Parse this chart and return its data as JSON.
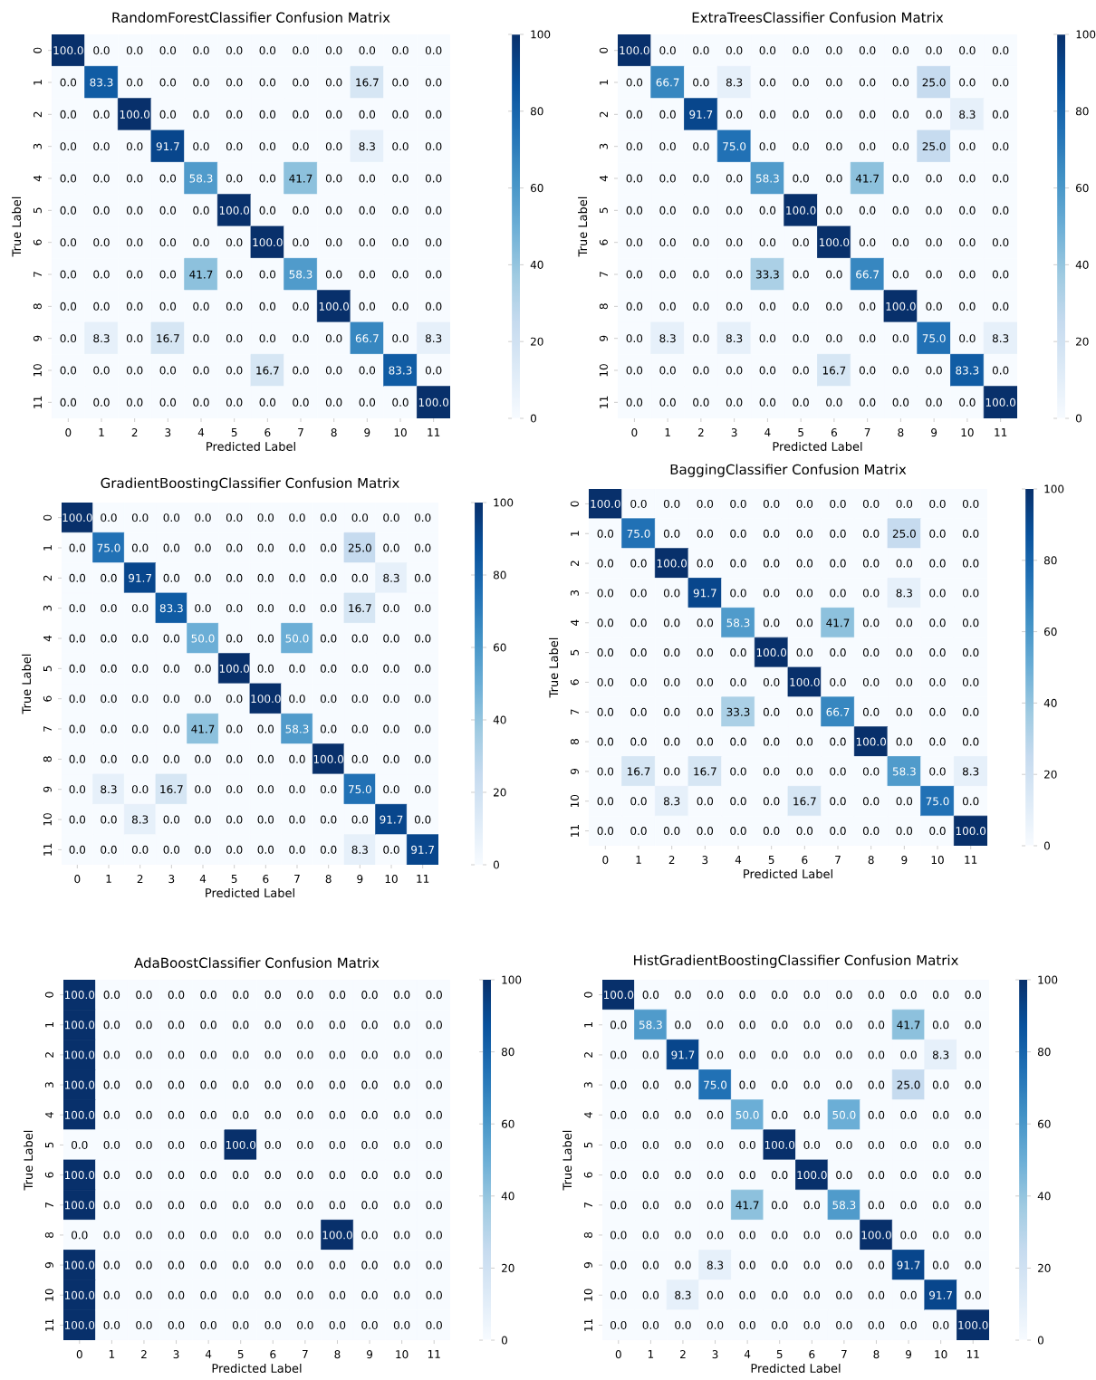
{
  "chart_data": [
    {
      "type": "heatmap",
      "title": "RandomForestClassifier Confusion Matrix",
      "xlabel": "Predicted Label",
      "ylabel": "True Label",
      "categories": [
        "0",
        "1",
        "2",
        "3",
        "4",
        "5",
        "6",
        "7",
        "8",
        "9",
        "10",
        "11"
      ],
      "y_categories": [
        "0",
        "1",
        "2",
        "3",
        "4",
        "5",
        "6",
        "7",
        "8",
        "9",
        "10",
        "11"
      ],
      "cells": [
        [
          100,
          0,
          0,
          0,
          0,
          0,
          0,
          0,
          0,
          0,
          0,
          0
        ],
        [
          0,
          83.3,
          0,
          0,
          0,
          0,
          0,
          0,
          0,
          16.7,
          0,
          0
        ],
        [
          0,
          0,
          100,
          0,
          0,
          0,
          0,
          0,
          0,
          0,
          0,
          0
        ],
        [
          0,
          0,
          0,
          91.7,
          0,
          0,
          0,
          0,
          0,
          8.3,
          0,
          0
        ],
        [
          0,
          0,
          0,
          0,
          58.3,
          0,
          0,
          41.7,
          0,
          0,
          0,
          0
        ],
        [
          0,
          0,
          0,
          0,
          0,
          100,
          0,
          0,
          0,
          0,
          0,
          0
        ],
        [
          0,
          0,
          0,
          0,
          0,
          0,
          100,
          0,
          0,
          0,
          0,
          0
        ],
        [
          0,
          0,
          0,
          0,
          41.7,
          0,
          0,
          58.3,
          0,
          0,
          0,
          0
        ],
        [
          0,
          0,
          0,
          0,
          0,
          0,
          0,
          0,
          100,
          0,
          0,
          0
        ],
        [
          0,
          8.3,
          0,
          16.7,
          0,
          0,
          0,
          0,
          0,
          66.7,
          0,
          8.3
        ],
        [
          0,
          0,
          0,
          0,
          0,
          0,
          16.7,
          0,
          0,
          0,
          83.3,
          0
        ],
        [
          0,
          0,
          0,
          0,
          0,
          0,
          0,
          0,
          0,
          0,
          0,
          100
        ]
      ],
      "cell_labels": [
        [
          "100.0",
          "0.0",
          "0.0",
          "0.0",
          "0.0",
          "0.0",
          "0.0",
          "0.0",
          "0.0",
          "0.0",
          "0.0",
          "0.0"
        ],
        [
          "0.0",
          "83.3",
          "0.0",
          "0.0",
          "0.0",
          "0.0",
          "0.0",
          "0.0",
          "0.0",
          "16.7",
          "0.0",
          "0.0"
        ],
        [
          "0.0",
          "0.0",
          "100.0",
          "0.0",
          "0.0",
          "0.0",
          "0.0",
          "0.0",
          "0.0",
          "0.0",
          "0.0",
          "0.0"
        ],
        [
          "0.0",
          "0.0",
          "0.0",
          "91.7",
          "0.0",
          "0.0",
          "0.0",
          "0.0",
          "0.0",
          "8.3",
          "0.0",
          "0.0"
        ],
        [
          "0.0",
          "0.0",
          "0.0",
          "0.0",
          "58.3",
          "0.0",
          "0.0",
          "41.7",
          "0.0",
          "0.0",
          "0.0",
          "0.0"
        ],
        [
          "0.0",
          "0.0",
          "0.0",
          "0.0",
          "0.0",
          "100.0",
          "0.0",
          "0.0",
          "0.0",
          "0.0",
          "0.0",
          "0.0"
        ],
        [
          "0.0",
          "0.0",
          "0.0",
          "0.0",
          "0.0",
          "0.0",
          "100.0",
          "0.0",
          "0.0",
          "0.0",
          "0.0",
          "0.0"
        ],
        [
          "0.0",
          "0.0",
          "0.0",
          "0.0",
          "41.7",
          "0.0",
          "0.0",
          "58.3",
          "0.0",
          "0.0",
          "0.0",
          "0.0"
        ],
        [
          "0.0",
          "0.0",
          "0.0",
          "0.0",
          "0.0",
          "0.0",
          "0.0",
          "0.0",
          "100.0",
          "0.0",
          "0.0",
          "0.0"
        ],
        [
          "0.0",
          "8.3",
          "0.0",
          "16.7",
          "0.0",
          "0.0",
          "0.0",
          "0.0",
          "0.0",
          "66.7",
          "0.0",
          "8.3"
        ],
        [
          "0.0",
          "0.0",
          "0.0",
          "0.0",
          "0.0",
          "0.0",
          "16.7",
          "0.0",
          "0.0",
          "0.0",
          "83.3",
          "0.0"
        ],
        [
          "0.0",
          "0.0",
          "0.0",
          "0.0",
          "0.0",
          "0.0",
          "0.0",
          "0.0",
          "0.0",
          "0.0",
          "0.0",
          "100.0"
        ]
      ],
      "clim": [
        0,
        100
      ],
      "cticks": [
        0,
        20,
        40,
        60,
        80,
        100
      ]
    },
    {
      "type": "heatmap",
      "title": "ExtraTreesClassifier Confusion Matrix",
      "xlabel": "Predicted Label",
      "ylabel": "True Label",
      "categories": [
        "0",
        "1",
        "2",
        "3",
        "4",
        "5",
        "6",
        "7",
        "8",
        "9",
        "10",
        "11"
      ],
      "y_categories": [
        "0",
        "1",
        "2",
        "3",
        "4",
        "5",
        "6",
        "7",
        "8",
        "9",
        "10",
        "11"
      ],
      "cells": [
        [
          100,
          0,
          0,
          0,
          0,
          0,
          0,
          0,
          0,
          0,
          0,
          0
        ],
        [
          0,
          66.7,
          0,
          8.3,
          0,
          0,
          0,
          0,
          0,
          25,
          0,
          0
        ],
        [
          0,
          0,
          91.7,
          0,
          0,
          0,
          0,
          0,
          0,
          0,
          8.3,
          0
        ],
        [
          0,
          0,
          0,
          75,
          0,
          0,
          0,
          0,
          0,
          25,
          0,
          0
        ],
        [
          0,
          0,
          0,
          0,
          58.3,
          0,
          0,
          41.7,
          0,
          0,
          0,
          0
        ],
        [
          0,
          0,
          0,
          0,
          0,
          100,
          0,
          0,
          0,
          0,
          0,
          0
        ],
        [
          0,
          0,
          0,
          0,
          0,
          0,
          100,
          0,
          0,
          0,
          0,
          0
        ],
        [
          0,
          0,
          0,
          0,
          33.3,
          0,
          0,
          66.7,
          0,
          0,
          0,
          0
        ],
        [
          0,
          0,
          0,
          0,
          0,
          0,
          0,
          0,
          100,
          0,
          0,
          0
        ],
        [
          0,
          8.3,
          0,
          8.3,
          0,
          0,
          0,
          0,
          0,
          75,
          0,
          8.3
        ],
        [
          0,
          0,
          0,
          0,
          0,
          0,
          16.7,
          0,
          0,
          0,
          83.3,
          0
        ],
        [
          0,
          0,
          0,
          0,
          0,
          0,
          0,
          0,
          0,
          0,
          0,
          100
        ]
      ],
      "cell_labels": [
        [
          "100.0",
          "0.0",
          "0.0",
          "0.0",
          "0.0",
          "0.0",
          "0.0",
          "0.0",
          "0.0",
          "0.0",
          "0.0",
          "0.0"
        ],
        [
          "0.0",
          "66.7",
          "0.0",
          "8.3",
          "0.0",
          "0.0",
          "0.0",
          "0.0",
          "0.0",
          "25.0",
          "0.0",
          "0.0"
        ],
        [
          "0.0",
          "0.0",
          "91.7",
          "0.0",
          "0.0",
          "0.0",
          "0.0",
          "0.0",
          "0.0",
          "0.0",
          "8.3",
          "0.0"
        ],
        [
          "0.0",
          "0.0",
          "0.0",
          "75.0",
          "0.0",
          "0.0",
          "0.0",
          "0.0",
          "0.0",
          "25.0",
          "0.0",
          "0.0"
        ],
        [
          "0.0",
          "0.0",
          "0.0",
          "0.0",
          "58.3",
          "0.0",
          "0.0",
          "41.7",
          "0.0",
          "0.0",
          "0.0",
          "0.0"
        ],
        [
          "0.0",
          "0.0",
          "0.0",
          "0.0",
          "0.0",
          "100.0",
          "0.0",
          "0.0",
          "0.0",
          "0.0",
          "0.0",
          "0.0"
        ],
        [
          "0.0",
          "0.0",
          "0.0",
          "0.0",
          "0.0",
          "0.0",
          "100.0",
          "0.0",
          "0.0",
          "0.0",
          "0.0",
          "0.0"
        ],
        [
          "0.0",
          "0.0",
          "0.0",
          "0.0",
          "33.3",
          "0.0",
          "0.0",
          "66.7",
          "0.0",
          "0.0",
          "0.0",
          "0.0"
        ],
        [
          "0.0",
          "0.0",
          "0.0",
          "0.0",
          "0.0",
          "0.0",
          "0.0",
          "0.0",
          "100.0",
          "0.0",
          "0.0",
          "0.0"
        ],
        [
          "0.0",
          "8.3",
          "0.0",
          "8.3",
          "0.0",
          "0.0",
          "0.0",
          "0.0",
          "0.0",
          "75.0",
          "0.0",
          "8.3"
        ],
        [
          "0.0",
          "0.0",
          "0.0",
          "0.0",
          "0.0",
          "0.0",
          "16.7",
          "0.0",
          "0.0",
          "0.0",
          "83.3",
          "0.0"
        ],
        [
          "0.0",
          "0.0",
          "0.0",
          "0.0",
          "0.0",
          "0.0",
          "0.0",
          "0.0",
          "0.0",
          "0.0",
          "0.0",
          "100.0"
        ]
      ],
      "clim": [
        0,
        100
      ],
      "cticks": [
        0,
        20,
        40,
        60,
        80,
        100
      ]
    },
    {
      "type": "heatmap",
      "title": "GradientBoostingClassifier Confusion Matrix",
      "xlabel": "Predicted Label",
      "ylabel": "True Label",
      "categories": [
        "0",
        "1",
        "2",
        "3",
        "4",
        "5",
        "6",
        "7",
        "8",
        "9",
        "10",
        "11"
      ],
      "y_categories": [
        "0",
        "1",
        "2",
        "3",
        "4",
        "5",
        "6",
        "7",
        "8",
        "9",
        "10",
        "11"
      ],
      "cells": [
        [
          100,
          0,
          0,
          0,
          0,
          0,
          0,
          0,
          0,
          0,
          0,
          0
        ],
        [
          0,
          75,
          0,
          0,
          0,
          0,
          0,
          0,
          0,
          25,
          0,
          0
        ],
        [
          0,
          0,
          91.7,
          0,
          0,
          0,
          0,
          0,
          0,
          0,
          8.3,
          0
        ],
        [
          0,
          0,
          0,
          83.3,
          0,
          0,
          0,
          0,
          0,
          16.7,
          0,
          0
        ],
        [
          0,
          0,
          0,
          0,
          50,
          0,
          0,
          50,
          0,
          0,
          0,
          0
        ],
        [
          0,
          0,
          0,
          0,
          0,
          100,
          0,
          0,
          0,
          0,
          0,
          0
        ],
        [
          0,
          0,
          0,
          0,
          0,
          0,
          100,
          0,
          0,
          0,
          0,
          0
        ],
        [
          0,
          0,
          0,
          0,
          41.7,
          0,
          0,
          58.3,
          0,
          0,
          0,
          0
        ],
        [
          0,
          0,
          0,
          0,
          0,
          0,
          0,
          0,
          100,
          0,
          0,
          0
        ],
        [
          0,
          8.3,
          0,
          16.7,
          0,
          0,
          0,
          0,
          0,
          75,
          0,
          0
        ],
        [
          0,
          0,
          8.3,
          0,
          0,
          0,
          0,
          0,
          0,
          0,
          91.7,
          0
        ],
        [
          0,
          0,
          0,
          0,
          0,
          0,
          0,
          0,
          0,
          8.3,
          0,
          91.7
        ]
      ],
      "cell_labels": [
        [
          "100.0",
          "0.0",
          "0.0",
          "0.0",
          "0.0",
          "0.0",
          "0.0",
          "0.0",
          "0.0",
          "0.0",
          "0.0",
          "0.0"
        ],
        [
          "0.0",
          "75.0",
          "0.0",
          "0.0",
          "0.0",
          "0.0",
          "0.0",
          "0.0",
          "0.0",
          "25.0",
          "0.0",
          "0.0"
        ],
        [
          "0.0",
          "0.0",
          "91.7",
          "0.0",
          "0.0",
          "0.0",
          "0.0",
          "0.0",
          "0.0",
          "0.0",
          "8.3",
          "0.0"
        ],
        [
          "0.0",
          "0.0",
          "0.0",
          "83.3",
          "0.0",
          "0.0",
          "0.0",
          "0.0",
          "0.0",
          "16.7",
          "0.0",
          "0.0"
        ],
        [
          "0.0",
          "0.0",
          "0.0",
          "0.0",
          "50.0",
          "0.0",
          "0.0",
          "50.0",
          "0.0",
          "0.0",
          "0.0",
          "0.0"
        ],
        [
          "0.0",
          "0.0",
          "0.0",
          "0.0",
          "0.0",
          "100.0",
          "0.0",
          "0.0",
          "0.0",
          "0.0",
          "0.0",
          "0.0"
        ],
        [
          "0.0",
          "0.0",
          "0.0",
          "0.0",
          "0.0",
          "0.0",
          "100.0",
          "0.0",
          "0.0",
          "0.0",
          "0.0",
          "0.0"
        ],
        [
          "0.0",
          "0.0",
          "0.0",
          "0.0",
          "41.7",
          "0.0",
          "0.0",
          "58.3",
          "0.0",
          "0.0",
          "0.0",
          "0.0"
        ],
        [
          "0.0",
          "0.0",
          "0.0",
          "0.0",
          "0.0",
          "0.0",
          "0.0",
          "0.0",
          "100.0",
          "0.0",
          "0.0",
          "0.0"
        ],
        [
          "0.0",
          "8.3",
          "0.0",
          "16.7",
          "0.0",
          "0.0",
          "0.0",
          "0.0",
          "0.0",
          "75.0",
          "0.0",
          "0.0"
        ],
        [
          "0.0",
          "0.0",
          "8.3",
          "0.0",
          "0.0",
          "0.0",
          "0.0",
          "0.0",
          "0.0",
          "0.0",
          "91.7",
          "0.0"
        ],
        [
          "0.0",
          "0.0",
          "0.0",
          "0.0",
          "0.0",
          "0.0",
          "0.0",
          "0.0",
          "0.0",
          "8.3",
          "0.0",
          "91.7"
        ]
      ],
      "clim": [
        0,
        100
      ],
      "cticks": [
        0,
        20,
        40,
        60,
        80,
        100
      ]
    },
    {
      "type": "heatmap",
      "title": "BaggingClassifier Confusion Matrix",
      "xlabel": "Predicted Label",
      "ylabel": "True Label",
      "categories": [
        "0",
        "1",
        "2",
        "3",
        "4",
        "5",
        "6",
        "7",
        "8",
        "9",
        "10",
        "11"
      ],
      "y_categories": [
        "0",
        "1",
        "2",
        "3",
        "4",
        "5",
        "6",
        "7",
        "8",
        "9",
        "10",
        "11"
      ],
      "cells": [
        [
          100,
          0,
          0,
          0,
          0,
          0,
          0,
          0,
          0,
          0,
          0,
          0
        ],
        [
          0,
          75,
          0,
          0,
          0,
          0,
          0,
          0,
          0,
          25,
          0,
          0
        ],
        [
          0,
          0,
          100,
          0,
          0,
          0,
          0,
          0,
          0,
          0,
          0,
          0
        ],
        [
          0,
          0,
          0,
          91.7,
          0,
          0,
          0,
          0,
          0,
          8.3,
          0,
          0
        ],
        [
          0,
          0,
          0,
          0,
          58.3,
          0,
          0,
          41.7,
          0,
          0,
          0,
          0
        ],
        [
          0,
          0,
          0,
          0,
          0,
          100,
          0,
          0,
          0,
          0,
          0,
          0
        ],
        [
          0,
          0,
          0,
          0,
          0,
          0,
          100,
          0,
          0,
          0,
          0,
          0
        ],
        [
          0,
          0,
          0,
          0,
          33.3,
          0,
          0,
          66.7,
          0,
          0,
          0,
          0
        ],
        [
          0,
          0,
          0,
          0,
          0,
          0,
          0,
          0,
          100,
          0,
          0,
          0
        ],
        [
          0,
          16.7,
          0,
          16.7,
          0,
          0,
          0,
          0,
          0,
          58.3,
          0,
          8.3
        ],
        [
          0,
          0,
          8.3,
          0,
          0,
          0,
          16.7,
          0,
          0,
          0,
          75,
          0
        ],
        [
          0,
          0,
          0,
          0,
          0,
          0,
          0,
          0,
          0,
          0,
          0,
          100
        ]
      ],
      "cell_labels": [
        [
          "100.0",
          "0.0",
          "0.0",
          "0.0",
          "0.0",
          "0.0",
          "0.0",
          "0.0",
          "0.0",
          "0.0",
          "0.0",
          "0.0"
        ],
        [
          "0.0",
          "75.0",
          "0.0",
          "0.0",
          "0.0",
          "0.0",
          "0.0",
          "0.0",
          "0.0",
          "25.0",
          "0.0",
          "0.0"
        ],
        [
          "0.0",
          "0.0",
          "100.0",
          "0.0",
          "0.0",
          "0.0",
          "0.0",
          "0.0",
          "0.0",
          "0.0",
          "0.0",
          "0.0"
        ],
        [
          "0.0",
          "0.0",
          "0.0",
          "91.7",
          "0.0",
          "0.0",
          "0.0",
          "0.0",
          "0.0",
          "8.3",
          "0.0",
          "0.0"
        ],
        [
          "0.0",
          "0.0",
          "0.0",
          "0.0",
          "58.3",
          "0.0",
          "0.0",
          "41.7",
          "0.0",
          "0.0",
          "0.0",
          "0.0"
        ],
        [
          "0.0",
          "0.0",
          "0.0",
          "0.0",
          "0.0",
          "100.0",
          "0.0",
          "0.0",
          "0.0",
          "0.0",
          "0.0",
          "0.0"
        ],
        [
          "0.0",
          "0.0",
          "0.0",
          "0.0",
          "0.0",
          "0.0",
          "100.0",
          "0.0",
          "0.0",
          "0.0",
          "0.0",
          "0.0"
        ],
        [
          "0.0",
          "0.0",
          "0.0",
          "0.0",
          "33.3",
          "0.0",
          "0.0",
          "66.7",
          "0.0",
          "0.0",
          "0.0",
          "0.0"
        ],
        [
          "0.0",
          "0.0",
          "0.0",
          "0.0",
          "0.0",
          "0.0",
          "0.0",
          "0.0",
          "100.0",
          "0.0",
          "0.0",
          "0.0"
        ],
        [
          "0.0",
          "16.7",
          "0.0",
          "16.7",
          "0.0",
          "0.0",
          "0.0",
          "0.0",
          "0.0",
          "58.3",
          "0.0",
          "8.3"
        ],
        [
          "0.0",
          "0.0",
          "8.3",
          "0.0",
          "0.0",
          "0.0",
          "16.7",
          "0.0",
          "0.0",
          "0.0",
          "75.0",
          "0.0"
        ],
        [
          "0.0",
          "0.0",
          "0.0",
          "0.0",
          "0.0",
          "0.0",
          "0.0",
          "0.0",
          "0.0",
          "0.0",
          "0.0",
          "100.0"
        ]
      ],
      "clim": [
        0,
        100
      ],
      "cticks": [
        0,
        20,
        40,
        60,
        80,
        100
      ]
    },
    {
      "type": "heatmap",
      "title": "AdaBoostClassifier Confusion Matrix",
      "xlabel": "Predicted Label",
      "ylabel": "True Label",
      "categories": [
        "0",
        "1",
        "2",
        "3",
        "4",
        "5",
        "6",
        "7",
        "8",
        "9",
        "10",
        "11"
      ],
      "y_categories": [
        "0",
        "1",
        "2",
        "3",
        "4",
        "5",
        "6",
        "7",
        "8",
        "9",
        "10",
        "11"
      ],
      "cells": [
        [
          100,
          0,
          0,
          0,
          0,
          0,
          0,
          0,
          0,
          0,
          0,
          0
        ],
        [
          100,
          0,
          0,
          0,
          0,
          0,
          0,
          0,
          0,
          0,
          0,
          0
        ],
        [
          100,
          0,
          0,
          0,
          0,
          0,
          0,
          0,
          0,
          0,
          0,
          0
        ],
        [
          100,
          0,
          0,
          0,
          0,
          0,
          0,
          0,
          0,
          0,
          0,
          0
        ],
        [
          100,
          0,
          0,
          0,
          0,
          0,
          0,
          0,
          0,
          0,
          0,
          0
        ],
        [
          0,
          0,
          0,
          0,
          0,
          100,
          0,
          0,
          0,
          0,
          0,
          0
        ],
        [
          100,
          0,
          0,
          0,
          0,
          0,
          0,
          0,
          0,
          0,
          0,
          0
        ],
        [
          100,
          0,
          0,
          0,
          0,
          0,
          0,
          0,
          0,
          0,
          0,
          0
        ],
        [
          0,
          0,
          0,
          0,
          0,
          0,
          0,
          0,
          100,
          0,
          0,
          0
        ],
        [
          100,
          0,
          0,
          0,
          0,
          0,
          0,
          0,
          0,
          0,
          0,
          0
        ],
        [
          100,
          0,
          0,
          0,
          0,
          0,
          0,
          0,
          0,
          0,
          0,
          0
        ],
        [
          100,
          0,
          0,
          0,
          0,
          0,
          0,
          0,
          0,
          0,
          0,
          0
        ]
      ],
      "cell_labels": [
        [
          "100.0",
          "0.0",
          "0.0",
          "0.0",
          "0.0",
          "0.0",
          "0.0",
          "0.0",
          "0.0",
          "0.0",
          "0.0",
          "0.0"
        ],
        [
          "100.0",
          "0.0",
          "0.0",
          "0.0",
          "0.0",
          "0.0",
          "0.0",
          "0.0",
          "0.0",
          "0.0",
          "0.0",
          "0.0"
        ],
        [
          "100.0",
          "0.0",
          "0.0",
          "0.0",
          "0.0",
          "0.0",
          "0.0",
          "0.0",
          "0.0",
          "0.0",
          "0.0",
          "0.0"
        ],
        [
          "100.0",
          "0.0",
          "0.0",
          "0.0",
          "0.0",
          "0.0",
          "0.0",
          "0.0",
          "0.0",
          "0.0",
          "0.0",
          "0.0"
        ],
        [
          "100.0",
          "0.0",
          "0.0",
          "0.0",
          "0.0",
          "0.0",
          "0.0",
          "0.0",
          "0.0",
          "0.0",
          "0.0",
          "0.0"
        ],
        [
          "0.0",
          "0.0",
          "0.0",
          "0.0",
          "0.0",
          "100.0",
          "0.0",
          "0.0",
          "0.0",
          "0.0",
          "0.0",
          "0.0"
        ],
        [
          "100.0",
          "0.0",
          "0.0",
          "0.0",
          "0.0",
          "0.0",
          "0.0",
          "0.0",
          "0.0",
          "0.0",
          "0.0",
          "0.0"
        ],
        [
          "100.0",
          "0.0",
          "0.0",
          "0.0",
          "0.0",
          "0.0",
          "0.0",
          "0.0",
          "0.0",
          "0.0",
          "0.0",
          "0.0"
        ],
        [
          "0.0",
          "0.0",
          "0.0",
          "0.0",
          "0.0",
          "0.0",
          "0.0",
          "0.0",
          "100.0",
          "0.0",
          "0.0",
          "0.0"
        ],
        [
          "100.0",
          "0.0",
          "0.0",
          "0.0",
          "0.0",
          "0.0",
          "0.0",
          "0.0",
          "0.0",
          "0.0",
          "0.0",
          "0.0"
        ],
        [
          "100.0",
          "0.0",
          "0.0",
          "0.0",
          "0.0",
          "0.0",
          "0.0",
          "0.0",
          "0.0",
          "0.0",
          "0.0",
          "0.0"
        ],
        [
          "100.0",
          "0.0",
          "0.0",
          "0.0",
          "0.0",
          "0.0",
          "0.0",
          "0.0",
          "0.0",
          "0.0",
          "0.0",
          "0.0"
        ]
      ],
      "clim": [
        0,
        100
      ],
      "cticks": [
        0,
        20,
        40,
        60,
        80,
        100
      ]
    },
    {
      "type": "heatmap",
      "title": "HistGradientBoostingClassifier Confusion Matrix",
      "xlabel": "Predicted Label",
      "ylabel": "True Label",
      "categories": [
        "0",
        "1",
        "2",
        "3",
        "4",
        "5",
        "6",
        "7",
        "8",
        "9",
        "10",
        "11"
      ],
      "y_categories": [
        "0",
        "1",
        "2",
        "3",
        "4",
        "5",
        "6",
        "7",
        "8",
        "9",
        "10",
        "11"
      ],
      "cells": [
        [
          100,
          0,
          0,
          0,
          0,
          0,
          0,
          0,
          0,
          0,
          0,
          0
        ],
        [
          0,
          58.3,
          0,
          0,
          0,
          0,
          0,
          0,
          0,
          41.7,
          0,
          0
        ],
        [
          0,
          0,
          91.7,
          0,
          0,
          0,
          0,
          0,
          0,
          0,
          8.3,
          0
        ],
        [
          0,
          0,
          0,
          75,
          0,
          0,
          0,
          0,
          0,
          25,
          0,
          0
        ],
        [
          0,
          0,
          0,
          0,
          50,
          0,
          0,
          50,
          0,
          0,
          0,
          0
        ],
        [
          0,
          0,
          0,
          0,
          0,
          100,
          0,
          0,
          0,
          0,
          0,
          0
        ],
        [
          0,
          0,
          0,
          0,
          0,
          0,
          100,
          0,
          0,
          0,
          0,
          0
        ],
        [
          0,
          0,
          0,
          0,
          41.7,
          0,
          0,
          58.3,
          0,
          0,
          0,
          0
        ],
        [
          0,
          0,
          0,
          0,
          0,
          0,
          0,
          0,
          100,
          0,
          0,
          0
        ],
        [
          0,
          0,
          0,
          8.3,
          0,
          0,
          0,
          0,
          0,
          91.7,
          0,
          0
        ],
        [
          0,
          0,
          8.3,
          0,
          0,
          0,
          0,
          0,
          0,
          0,
          91.7,
          0
        ],
        [
          0,
          0,
          0,
          0,
          0,
          0,
          0,
          0,
          0,
          0,
          0,
          100
        ]
      ],
      "cell_labels": [
        [
          "100.0",
          "0.0",
          "0.0",
          "0.0",
          "0.0",
          "0.0",
          "0.0",
          "0.0",
          "0.0",
          "0.0",
          "0.0",
          "0.0"
        ],
        [
          "0.0",
          "58.3",
          "0.0",
          "0.0",
          "0.0",
          "0.0",
          "0.0",
          "0.0",
          "0.0",
          "41.7",
          "0.0",
          "0.0"
        ],
        [
          "0.0",
          "0.0",
          "91.7",
          "0.0",
          "0.0",
          "0.0",
          "0.0",
          "0.0",
          "0.0",
          "0.0",
          "8.3",
          "0.0"
        ],
        [
          "0.0",
          "0.0",
          "0.0",
          "75.0",
          "0.0",
          "0.0",
          "0.0",
          "0.0",
          "0.0",
          "25.0",
          "0.0",
          "0.0"
        ],
        [
          "0.0",
          "0.0",
          "0.0",
          "0.0",
          "50.0",
          "0.0",
          "0.0",
          "50.0",
          "0.0",
          "0.0",
          "0.0",
          "0.0"
        ],
        [
          "0.0",
          "0.0",
          "0.0",
          "0.0",
          "0.0",
          "100.0",
          "0.0",
          "0.0",
          "0.0",
          "0.0",
          "0.0",
          "0.0"
        ],
        [
          "0.0",
          "0.0",
          "0.0",
          "0.0",
          "0.0",
          "0.0",
          "100.0",
          "0.0",
          "0.0",
          "0.0",
          "0.0",
          "0.0"
        ],
        [
          "0.0",
          "0.0",
          "0.0",
          "0.0",
          "41.7",
          "0.0",
          "0.0",
          "58.3",
          "0.0",
          "0.0",
          "0.0",
          "0.0"
        ],
        [
          "0.0",
          "0.0",
          "0.0",
          "0.0",
          "0.0",
          "0.0",
          "0.0",
          "0.0",
          "100.0",
          "0.0",
          "0.0",
          "0.0"
        ],
        [
          "0.0",
          "0.0",
          "0.0",
          "8.3",
          "0.0",
          "0.0",
          "0.0",
          "0.0",
          "0.0",
          "91.7",
          "0.0",
          "0.0"
        ],
        [
          "0.0",
          "0.0",
          "8.3",
          "0.0",
          "0.0",
          "0.0",
          "0.0",
          "0.0",
          "0.0",
          "0.0",
          "91.7",
          "0.0"
        ],
        [
          "0.0",
          "0.0",
          "0.0",
          "0.0",
          "0.0",
          "0.0",
          "0.0",
          "0.0",
          "0.0",
          "0.0",
          "0.0",
          "100.0"
        ]
      ],
      "clim": [
        0,
        100
      ],
      "cticks": [
        0,
        20,
        40,
        60,
        80,
        100
      ]
    }
  ]
}
